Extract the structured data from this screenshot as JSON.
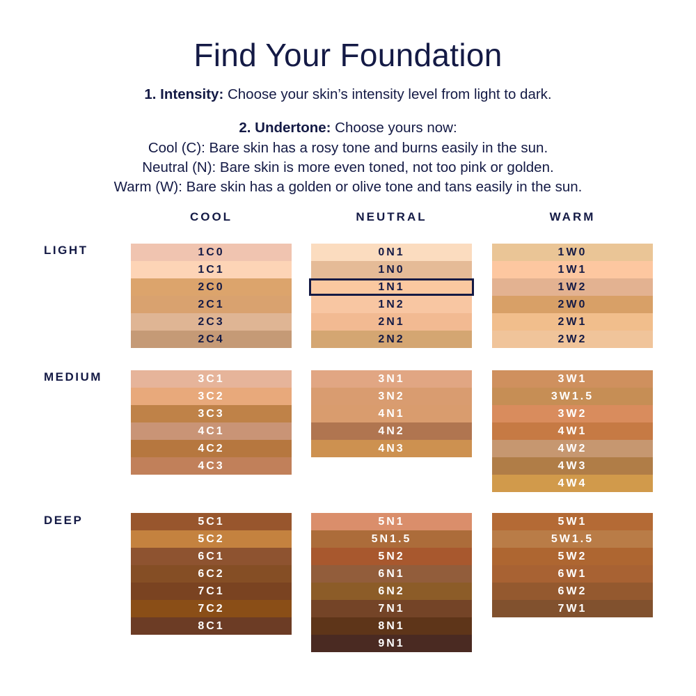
{
  "title": "Find Your Foundation",
  "step1": {
    "label": "1. Intensity:",
    "text": " Choose your skin’s intensity level from light to dark."
  },
  "step2": {
    "label": "2. Undertone:",
    "text": " Choose yours now:"
  },
  "undertones": [
    "Cool (C): Bare skin has a rosy tone and burns easily in the sun.",
    "Neutral (N): Bare skin is more even toned, not too pink or golden.",
    "Warm (W): Bare skin has a golden or olive tone and tans easily in the sun."
  ],
  "columns": [
    "COOL",
    "NEUTRAL",
    "WARM"
  ],
  "rows": [
    "LIGHT",
    "MEDIUM",
    "DEEP"
  ],
  "selected": "1N1",
  "text_colors": {
    "light": "#141a45",
    "dark": "#ffffff"
  },
  "shades": {
    "light": [
      [
        [
          "1C0",
          "#f0c4b0"
        ],
        [
          "1C1",
          "#fdd4b6"
        ],
        [
          "2C0",
          "#dca46c"
        ],
        [
          "2C1",
          "#d9a26f"
        ],
        [
          "2C3",
          "#dfb594"
        ],
        [
          "2C4",
          "#c59a76"
        ]
      ],
      [
        [
          "0N1",
          "#fbdcbf"
        ],
        [
          "1N0",
          "#e5bb97"
        ],
        [
          "1N1",
          "#fbc8a0"
        ],
        [
          "1N2",
          "#f8c6a2"
        ],
        [
          "2N1",
          "#f2ba92"
        ],
        [
          "2N2",
          "#d4a672"
        ]
      ],
      [
        [
          "1W0",
          "#eac596"
        ],
        [
          "1W1",
          "#fdc7a0"
        ],
        [
          "1W2",
          "#e3b291"
        ],
        [
          "2W0",
          "#d8a067"
        ],
        [
          "2W1",
          "#f1be8c"
        ],
        [
          "2W2",
          "#f0c49a"
        ]
      ]
    ],
    "medium": [
      [
        [
          "3C1",
          "#e6b49a"
        ],
        [
          "3C2",
          "#e8a97b"
        ],
        [
          "3C3",
          "#bf8248"
        ],
        [
          "4C1",
          "#c99476"
        ],
        [
          "4C2",
          "#b6773f"
        ],
        [
          "4C3",
          "#c1805a"
        ]
      ],
      [
        [
          "3N1",
          "#e1a683"
        ],
        [
          "3N2",
          "#d99c70"
        ],
        [
          "4N1",
          "#d99c6e"
        ],
        [
          "4N2",
          "#b07550"
        ],
        [
          "4N3",
          "#cd9150"
        ]
      ],
      [
        [
          "3W1",
          "#cf905e"
        ],
        [
          "3W1.5",
          "#c68e55"
        ],
        [
          "3W2",
          "#d98c5d"
        ],
        [
          "4W1",
          "#c67a44"
        ],
        [
          "4W2",
          "#c69770"
        ],
        [
          "4W3",
          "#b07d47"
        ],
        [
          "4W4",
          "#d19a4b"
        ]
      ]
    ],
    "deep": [
      [
        [
          "5C1",
          "#98562d"
        ],
        [
          "5C2",
          "#c4823f"
        ],
        [
          "6C1",
          "#8e5330"
        ],
        [
          "6C2",
          "#854e25"
        ],
        [
          "7C1",
          "#7a4321"
        ],
        [
          "7C2",
          "#8a4e17"
        ],
        [
          "8C1",
          "#6c3c25"
        ]
      ],
      [
        [
          "5N1",
          "#da8e6b"
        ],
        [
          "5N1.5",
          "#ac6c3a"
        ],
        [
          "5N2",
          "#a8582e"
        ],
        [
          "6N1",
          "#925d3b"
        ],
        [
          "6N2",
          "#8c5c28"
        ],
        [
          "7N1",
          "#744427"
        ],
        [
          "8N1",
          "#5e3519"
        ],
        [
          "9N1",
          "#4a2a22"
        ]
      ],
      [
        [
          "5W1",
          "#b46a35"
        ],
        [
          "5W1.5",
          "#b97c47"
        ],
        [
          "5W2",
          "#ae6631"
        ],
        [
          "6W1",
          "#a86233"
        ],
        [
          "6W2",
          "#94592f"
        ],
        [
          "7W1",
          "#81512e"
        ]
      ]
    ]
  }
}
